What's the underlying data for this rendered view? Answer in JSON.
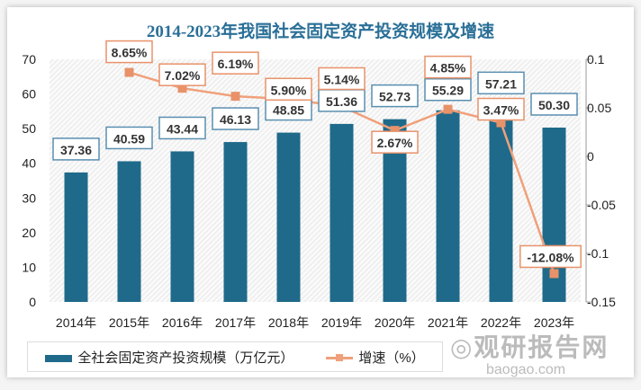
{
  "chart_data": {
    "type": "bar+line",
    "title": "2014-2023年我国社会固定资产投资规模及增速",
    "categories": [
      "2014年",
      "2015年",
      "2016年",
      "2017年",
      "2018年",
      "2019年",
      "2020年",
      "2021年",
      "2022年",
      "2023年"
    ],
    "series": [
      {
        "name": "全社会固定资产投资规模（万亿元）",
        "type": "bar",
        "axis": "left",
        "color": "#1f6a8a",
        "values": [
          37.36,
          40.59,
          43.44,
          46.13,
          48.85,
          51.36,
          52.73,
          55.29,
          57.21,
          50.3
        ],
        "labels": [
          "37.36",
          "40.59",
          "43.44",
          "46.13",
          "48.85",
          "51.36",
          "52.73",
          "55.29",
          "57.21",
          "50.30"
        ]
      },
      {
        "name": "增速（%）",
        "type": "line",
        "axis": "right",
        "color": "#f0a07a",
        "values": [
          null,
          0.0865,
          0.0702,
          0.0619,
          0.059,
          0.0514,
          0.0267,
          0.0485,
          0.0347,
          -0.1208
        ],
        "labels": [
          "",
          "8.65%",
          "7.02%",
          "6.19%",
          "5.90%",
          "5.14%",
          "2.67%",
          "4.85%",
          "3.47%",
          "-12.08%"
        ]
      }
    ],
    "left_axis": {
      "ylim": [
        0,
        70
      ],
      "ticks": [
        "0",
        "10",
        "20",
        "30",
        "40",
        "50",
        "60",
        "70"
      ]
    },
    "right_axis": {
      "ylim": [
        -0.15,
        0.1
      ],
      "ticks": [
        "-0.15",
        "-0.1",
        "-0.05",
        "0",
        "0.05",
        "0.1"
      ]
    },
    "legend_placement": "bottom",
    "grid": false
  },
  "watermark": {
    "name": "观研报告网",
    "url": "baogao.com"
  }
}
